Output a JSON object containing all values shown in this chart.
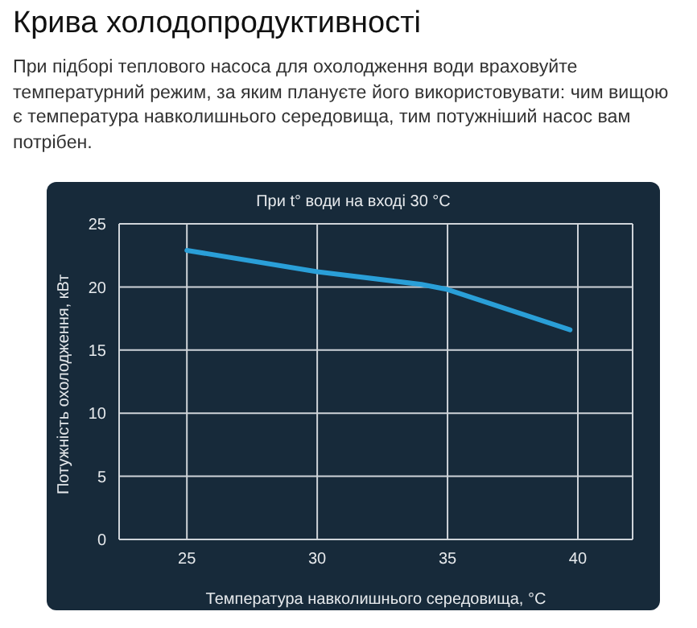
{
  "chart_data": {
    "type": "line",
    "title": "Крива холодопродуктивності",
    "subtitle": "При підборі теплового насоса для охолодження води враховуйте температурний режим, за яким плануєте його використовувати: чим вищою є температура навколишнього середовища, тим потужніший насос вам потрібен.",
    "annotations": [
      "При t° води на вході 30 °C"
    ],
    "xlabel": "Температура навколишнього середовища, °C",
    "ylabel": "Потужність охолодження, кВт",
    "series": [
      {
        "color": "#2a9fd8",
        "x": [
          25,
          30,
          34,
          35,
          39.7
        ],
        "values": [
          22.9,
          21.2,
          20.2,
          19.8,
          16.6
        ]
      }
    ],
    "xlim": [
      22.4,
      42.1
    ],
    "xticks": [
      25,
      30,
      35,
      40
    ],
    "ylim": [
      0,
      25
    ],
    "yticks": [
      0,
      5,
      10,
      15,
      20,
      25
    ],
    "grid": true,
    "marker": "none",
    "line_style": "solid"
  }
}
